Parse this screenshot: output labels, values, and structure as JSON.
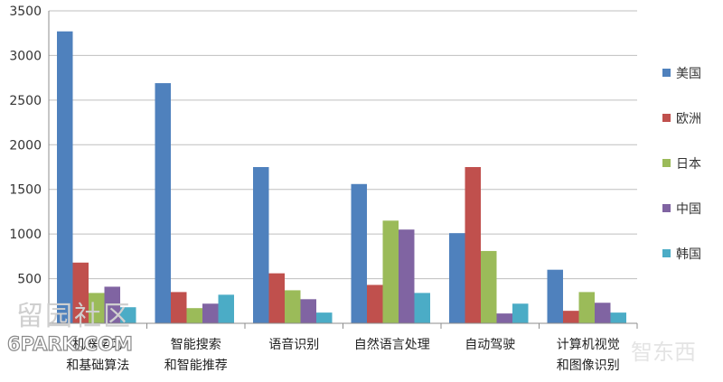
{
  "chart_data": {
    "type": "bar",
    "categories": [
      [
        "机器学习",
        "和基础算法"
      ],
      [
        "智能搜索",
        "和智能推荐"
      ],
      [
        "语音识别"
      ],
      [
        "自然语言处理"
      ],
      [
        "自动驾驶"
      ],
      [
        "计算机视觉",
        "和图像识别"
      ]
    ],
    "series": [
      {
        "name": "美国",
        "color": "#4f81bd",
        "values": [
          3270,
          2690,
          1750,
          1560,
          1010,
          600
        ]
      },
      {
        "name": "欧洲",
        "color": "#c0504d",
        "values": [
          680,
          350,
          560,
          430,
          1750,
          140
        ]
      },
      {
        "name": "日本",
        "color": "#9bbb59",
        "values": [
          340,
          170,
          370,
          1150,
          810,
          350
        ]
      },
      {
        "name": "中国",
        "color": "#8064a2",
        "values": [
          410,
          220,
          270,
          1050,
          110,
          230
        ]
      },
      {
        "name": "韩国",
        "color": "#4bacc6",
        "values": [
          180,
          320,
          120,
          340,
          220,
          120
        ]
      }
    ],
    "yticks": [
      500,
      1000,
      1500,
      2000,
      2500,
      3000,
      3500
    ],
    "ylim": [
      0,
      3500
    ],
    "grid": true,
    "legend": "right",
    "title": "",
    "xlabel": "",
    "ylabel": ""
  },
  "watermark": {
    "site_cn": "留园社区",
    "site_en": "6PARK.COM",
    "logo": "智东西"
  }
}
